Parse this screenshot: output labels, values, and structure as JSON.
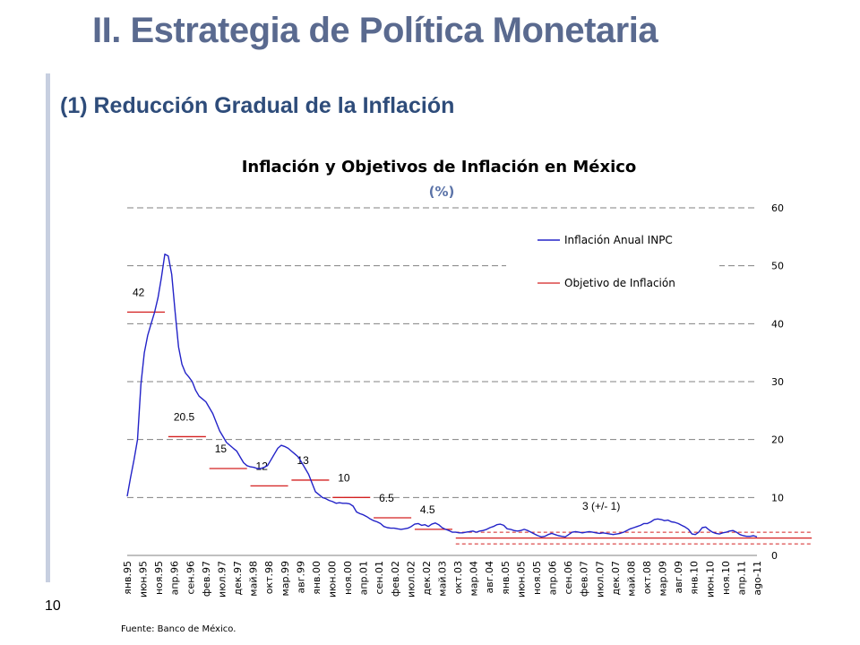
{
  "slide": {
    "title": "II. Estrategia de Política Monetaria",
    "subtitle": "(1) Reducción Gradual de la Inflación",
    "page_number": "10",
    "source": "Fuente: Banco de México."
  },
  "colors": {
    "title": "#5a6a8f",
    "subtitle": "#2e4c7a",
    "series_line": "#2323c8",
    "objective_line": "#d42020",
    "grid": "#808080"
  },
  "chart_data": {
    "type": "line",
    "title": "Inflación y Objetivos de Inflación en México",
    "subtitle": "(%)",
    "ylim": [
      0,
      60
    ],
    "yticks": [
      "0",
      "10",
      "20",
      "30",
      "40",
      "50",
      "60"
    ],
    "y_axis_side": "right",
    "grid": true,
    "legend_position": "top-right",
    "legend": [
      "Inflación Anual INPC",
      "Objetivo de Inflación"
    ],
    "x_tick_labels": [
      "янв.95",
      "июн.95",
      "ноя.95",
      "апр.96",
      "сен.96",
      "фев.97",
      "июл.97",
      "дек.97",
      "май.98",
      "окт.98",
      "мар.99",
      "авг.99",
      "янв.00",
      "июн.00",
      "ноя.00",
      "апр.01",
      "сен.01",
      "фев.02",
      "июл.02",
      "дек.02",
      "май.03",
      "окт.03",
      "мар.04",
      "авг.04",
      "янв.05",
      "июн.05",
      "ноя.05",
      "апр.06",
      "сен.06",
      "фев.07",
      "июл.07",
      "дек.07",
      "май.08",
      "окт.08",
      "мар.09",
      "авг.09",
      "янв.10",
      "июн.10",
      "ноя.10",
      "апр.11",
      "ago-11"
    ],
    "series": [
      {
        "name": "Inflación Anual INPC",
        "x_start_index": 0,
        "values": [
          10.2,
          13.5,
          16.5,
          20.0,
          29.5,
          35.0,
          38.0,
          40.0,
          42.0,
          44.5,
          48.0,
          52.0,
          51.7,
          48.5,
          42.0,
          36.0,
          33.0,
          31.5,
          30.8,
          30.0,
          28.5,
          27.5,
          27.0,
          26.5,
          25.5,
          24.5,
          23.0,
          21.5,
          20.5,
          19.5,
          19.0,
          18.5,
          18.0,
          17.0,
          16.0,
          15.5,
          15.3,
          15.2,
          15.0,
          15.0,
          15.2,
          15.5,
          16.5,
          17.5,
          18.5,
          19.0,
          18.8,
          18.5,
          18.0,
          17.5,
          17.0,
          16.0,
          15.0,
          14.0,
          12.5,
          11.0,
          10.5,
          10.0,
          9.8,
          9.5,
          9.3,
          9.0,
          9.1,
          9.0,
          9.0,
          8.9,
          8.5,
          7.5,
          7.2,
          7.0,
          6.7,
          6.3,
          6.0,
          5.8,
          5.5,
          5.0,
          4.8,
          4.7,
          4.7,
          4.6,
          4.5,
          4.6,
          4.7,
          5.0,
          5.4,
          5.5,
          5.2,
          5.3,
          5.0,
          5.4,
          5.6,
          5.3,
          4.8,
          4.5,
          4.3,
          4.0,
          4.0,
          3.9,
          3.9,
          4.0,
          4.1,
          4.2,
          4.0,
          4.2,
          4.3,
          4.5,
          4.8,
          5.0,
          5.3,
          5.4,
          5.2,
          4.6,
          4.5,
          4.3,
          4.2,
          4.3,
          4.5,
          4.3,
          4.0,
          3.7,
          3.4,
          3.2,
          3.3,
          3.6,
          3.8,
          3.6,
          3.4,
          3.3,
          3.2,
          3.6,
          4.0,
          4.1,
          4.0,
          3.9,
          4.0,
          4.1,
          4.0,
          3.9,
          3.8,
          3.9,
          3.8,
          3.7,
          3.6,
          3.7,
          3.8,
          4.0,
          4.3,
          4.6,
          4.8,
          5.0,
          5.2,
          5.5,
          5.5,
          5.8,
          6.2,
          6.3,
          6.2,
          6.0,
          6.1,
          5.8,
          5.7,
          5.5,
          5.2,
          4.9,
          4.5,
          3.7,
          3.6,
          4.0,
          4.8,
          4.9,
          4.4,
          4.0,
          3.8,
          3.7,
          3.9,
          4.0,
          4.2,
          4.3,
          4.0,
          3.6,
          3.4,
          3.3,
          3.3,
          3.4,
          3.2
        ]
      }
    ],
    "objectives": [
      {
        "label": "42",
        "value": 42,
        "start_index": 0,
        "end_index": 11
      },
      {
        "label": "20.5",
        "value": 20.5,
        "start_index": 12,
        "end_index": 23
      },
      {
        "label": "15",
        "value": 15,
        "start_index": 24,
        "end_index": 35
      },
      {
        "label": "12",
        "value": 12,
        "start_index": 36,
        "end_index": 47
      },
      {
        "label": "13",
        "value": 13,
        "start_index": 48,
        "end_index": 59
      },
      {
        "label": "10",
        "value": 10,
        "start_index": 60,
        "end_index": 71
      },
      {
        "label": "6.5",
        "value": 6.5,
        "start_index": 72,
        "end_index": 83
      },
      {
        "label": "4.5",
        "value": 4.5,
        "start_index": 84,
        "end_index": 95
      }
    ],
    "target_band": {
      "label": "3 (+/- 1)",
      "center": 3,
      "lower": 2,
      "upper": 4,
      "start_index": 96,
      "end_index": 200
    }
  }
}
